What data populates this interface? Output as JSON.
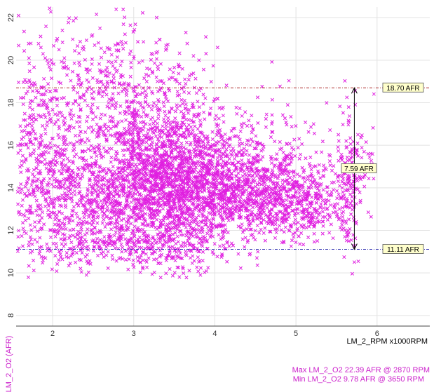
{
  "chart_data": {
    "type": "scatter",
    "xlabel": "LM_2_RPM x1000RPM",
    "ylabel": "LM_2_O2 (AFR)",
    "xlim": [
      1.55,
      6.65
    ],
    "ylim": [
      7.5,
      22.5
    ],
    "x_ticks": [
      "2",
      "3",
      "4",
      "5",
      "6"
    ],
    "y_ticks": [
      "8",
      "10",
      "12",
      "14",
      "16",
      "18",
      "20",
      "22"
    ],
    "grid": true,
    "marker": "x",
    "series_color": "#e020e0",
    "reference_lines": [
      {
        "label": "18.70 AFR",
        "value": 18.7,
        "color": "#b03030"
      },
      {
        "label": "11.11 AFR",
        "value": 11.11,
        "color": "#3030b0"
      }
    ],
    "range_annotation": {
      "label": "7.59 AFR",
      "from": 11.11,
      "to": 18.7,
      "x": 5.72
    },
    "stats": {
      "max": "Max LM_2_O2 22.39 AFR @ 2870 RPM",
      "min": "Min LM_2_O2 9.78 AFR @ 3650 RPM"
    },
    "clusters": [
      {
        "x": 3.5,
        "y": 14.0,
        "sx": 0.55,
        "sy": 1.5,
        "n": 1700
      },
      {
        "x": 3.1,
        "y": 14.5,
        "sx": 0.4,
        "sy": 1.9,
        "n": 500
      },
      {
        "x": 4.4,
        "y": 13.6,
        "sx": 0.45,
        "sy": 1.0,
        "n": 650
      },
      {
        "x": 5.05,
        "y": 13.3,
        "sx": 0.3,
        "sy": 0.8,
        "n": 350
      },
      {
        "x": 2.2,
        "y": 13.6,
        "sx": 0.35,
        "sy": 1.4,
        "n": 400
      },
      {
        "x": 1.8,
        "y": 15.5,
        "sx": 0.25,
        "sy": 3.0,
        "n": 350
      },
      {
        "x": 2.6,
        "y": 18.3,
        "sx": 0.55,
        "sy": 2.0,
        "n": 450
      },
      {
        "x": 3.4,
        "y": 17.0,
        "sx": 0.4,
        "sy": 1.6,
        "n": 250
      },
      {
        "x": 4.6,
        "y": 15.8,
        "sx": 0.7,
        "sy": 1.3,
        "n": 250
      },
      {
        "x": 5.65,
        "y": 14.2,
        "sx": 0.06,
        "sy": 1.6,
        "n": 120
      },
      {
        "x": 5.8,
        "y": 15.0,
        "sx": 0.18,
        "sy": 0.6,
        "n": 60
      },
      {
        "x": 2.4,
        "y": 11.5,
        "sx": 0.35,
        "sy": 0.5,
        "n": 120
      },
      {
        "x": 3.3,
        "y": 11.0,
        "sx": 0.4,
        "sy": 0.6,
        "n": 150
      }
    ],
    "extremes": [
      {
        "x": 2.87,
        "y": 22.39
      },
      {
        "x": 3.65,
        "y": 9.78
      }
    ]
  }
}
